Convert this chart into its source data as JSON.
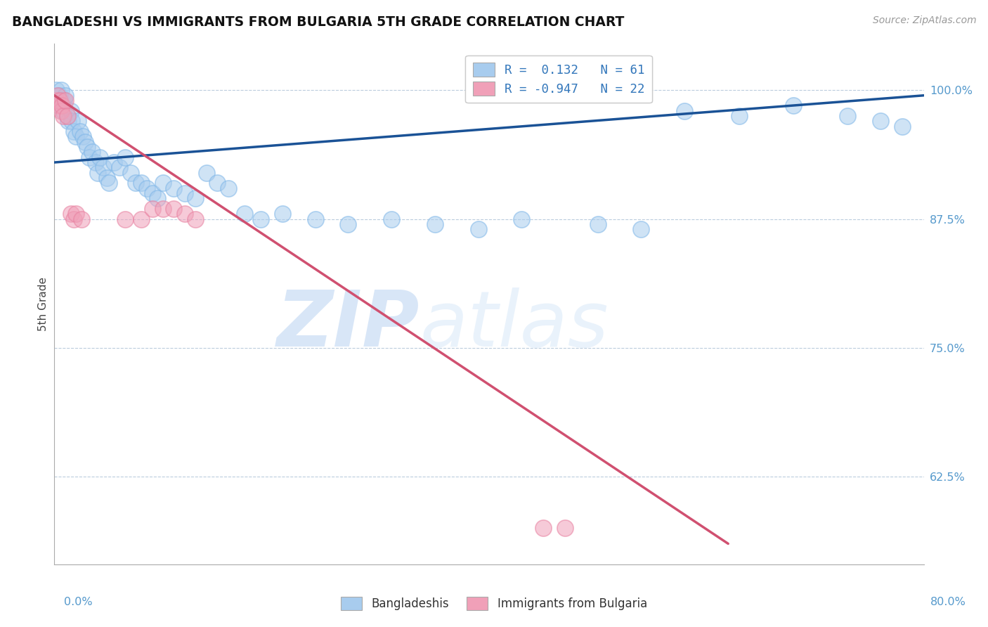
{
  "title": "BANGLADESHI VS IMMIGRANTS FROM BULGARIA 5TH GRADE CORRELATION CHART",
  "source": "Source: ZipAtlas.com",
  "ylabel": "5th Grade",
  "yticks": [
    0.625,
    0.75,
    0.875,
    1.0
  ],
  "ytick_labels": [
    "62.5%",
    "75.0%",
    "87.5%",
    "100.0%"
  ],
  "xlim": [
    0.0,
    0.8
  ],
  "ylim": [
    0.54,
    1.045
  ],
  "blue_color": "#A8CCEE",
  "pink_color": "#F0A0B8",
  "blue_edge_color": "#7EB6E8",
  "pink_edge_color": "#E880A0",
  "blue_line_color": "#1A5296",
  "pink_line_color": "#D05070",
  "blue_scatter_x": [
    0.002,
    0.003,
    0.004,
    0.005,
    0.006,
    0.007,
    0.008,
    0.009,
    0.01,
    0.012,
    0.013,
    0.015,
    0.016,
    0.018,
    0.02,
    0.022,
    0.024,
    0.026,
    0.028,
    0.03,
    0.032,
    0.035,
    0.038,
    0.04,
    0.042,
    0.045,
    0.048,
    0.05,
    0.055,
    0.06,
    0.065,
    0.07,
    0.075,
    0.08,
    0.085,
    0.09,
    0.095,
    0.1,
    0.11,
    0.12,
    0.13,
    0.14,
    0.15,
    0.16,
    0.175,
    0.19,
    0.21,
    0.24,
    0.27,
    0.31,
    0.35,
    0.39,
    0.43,
    0.5,
    0.54,
    0.58,
    0.63,
    0.68,
    0.73,
    0.76,
    0.78
  ],
  "blue_scatter_y": [
    1.0,
    0.995,
    0.99,
    0.995,
    1.0,
    0.99,
    0.98,
    0.99,
    0.995,
    0.975,
    0.97,
    0.98,
    0.97,
    0.96,
    0.955,
    0.97,
    0.96,
    0.955,
    0.95,
    0.945,
    0.935,
    0.94,
    0.93,
    0.92,
    0.935,
    0.925,
    0.915,
    0.91,
    0.93,
    0.925,
    0.935,
    0.92,
    0.91,
    0.91,
    0.905,
    0.9,
    0.895,
    0.91,
    0.905,
    0.9,
    0.895,
    0.92,
    0.91,
    0.905,
    0.88,
    0.875,
    0.88,
    0.875,
    0.87,
    0.875,
    0.87,
    0.865,
    0.875,
    0.87,
    0.865,
    0.98,
    0.975,
    0.985,
    0.975,
    0.97,
    0.965
  ],
  "pink_scatter_x": [
    0.002,
    0.003,
    0.004,
    0.005,
    0.006,
    0.007,
    0.008,
    0.01,
    0.012,
    0.015,
    0.018,
    0.02,
    0.025,
    0.065,
    0.08,
    0.09,
    0.1,
    0.11,
    0.12,
    0.13,
    0.45,
    0.47
  ],
  "pink_scatter_y": [
    0.99,
    0.995,
    0.985,
    0.99,
    0.98,
    0.985,
    0.975,
    0.99,
    0.975,
    0.88,
    0.875,
    0.88,
    0.875,
    0.875,
    0.875,
    0.885,
    0.885,
    0.885,
    0.88,
    0.875,
    0.575,
    0.575
  ],
  "blue_trend_x": [
    0.0,
    0.8
  ],
  "blue_trend_y": [
    0.93,
    0.995
  ],
  "pink_trend_x": [
    0.0,
    0.62
  ],
  "pink_trend_y": [
    0.995,
    0.56
  ]
}
